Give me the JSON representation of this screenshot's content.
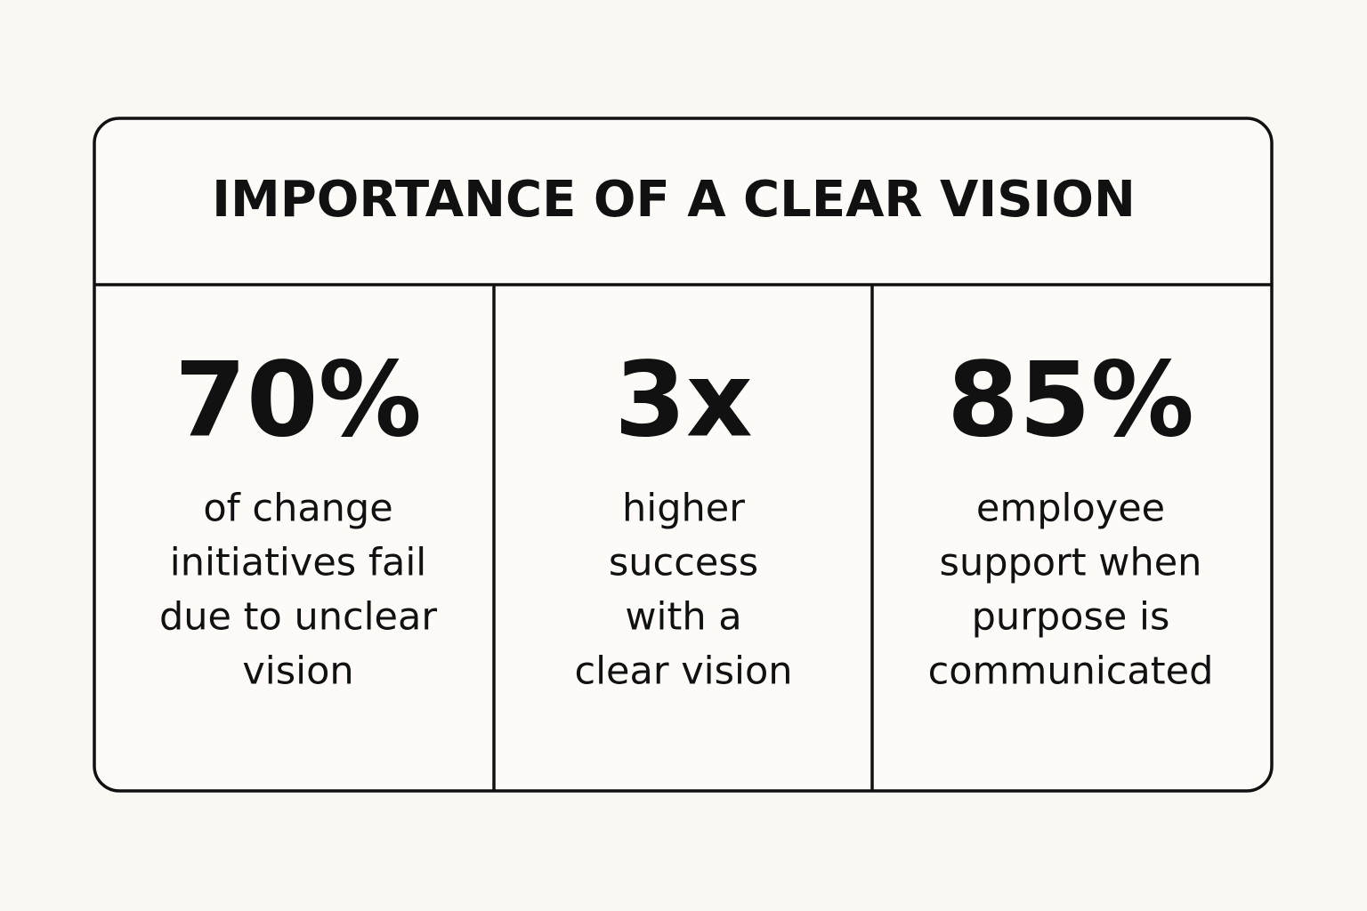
{
  "title": "IMPORTANCE OF A CLEAR VISION",
  "stats": [
    {
      "value": "70%",
      "description": [
        "of change",
        "initiatives fail",
        "due to unclear",
        "vision"
      ]
    },
    {
      "value": "3x",
      "description": [
        "higher",
        "success",
        "with a",
        "clear vision"
      ]
    },
    {
      "value": "85%",
      "description": [
        "employee",
        "support when",
        "purpose is",
        "communicated"
      ]
    }
  ]
}
